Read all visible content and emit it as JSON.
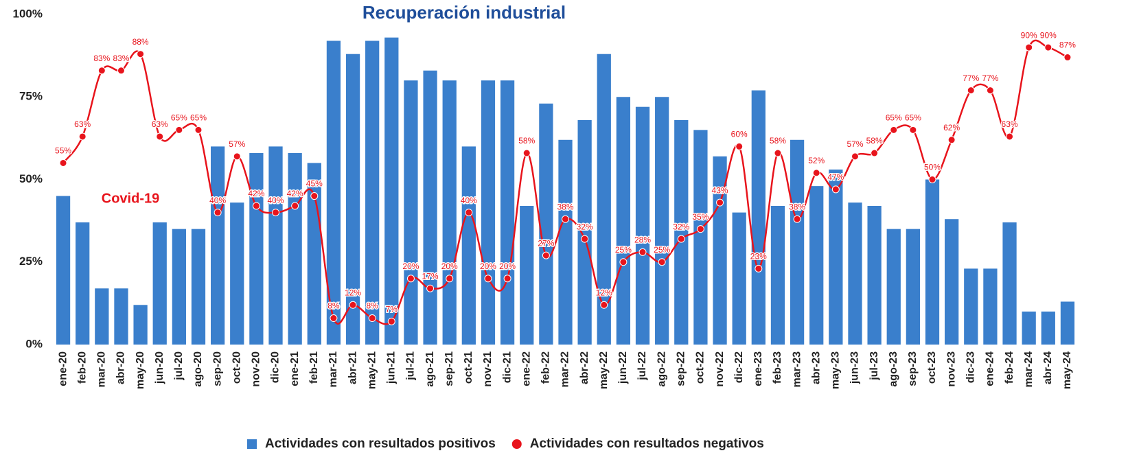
{
  "chart_data": {
    "type": "combo",
    "title": "Recuperación industrial",
    "annotations": [
      "Covid-19"
    ],
    "categories": [
      "ene-20",
      "feb-20",
      "mar-20",
      "abr-20",
      "may-20",
      "jun-20",
      "jul-20",
      "ago-20",
      "sep-20",
      "oct-20",
      "nov-20",
      "dic-20",
      "ene-21",
      "feb-21",
      "mar-21",
      "abr-21",
      "may-21",
      "jun-21",
      "jul-21",
      "ago-21",
      "sep-21",
      "oct-21",
      "nov-21",
      "dic-21",
      "ene-22",
      "feb-22",
      "mar-22",
      "abr-22",
      "may-22",
      "jun-22",
      "jul-22",
      "ago-22",
      "sep-22",
      "oct-22",
      "nov-22",
      "dic-22",
      "ene-23",
      "feb-23",
      "mar-23",
      "abr-23",
      "may-23",
      "jun-23",
      "jul-23",
      "ago-23",
      "sep-23",
      "oct-23",
      "nov-23",
      "dic-23",
      "ene-24",
      "feb-24",
      "mar-24",
      "abr-24",
      "may-24"
    ],
    "series": [
      {
        "name": "Actividades con resultados positivos",
        "type": "bar",
        "color": "#3a7fcc",
        "values": [
          45,
          37,
          17,
          17,
          12,
          37,
          35,
          35,
          60,
          43,
          58,
          60,
          58,
          55,
          92,
          88,
          92,
          93,
          80,
          83,
          80,
          60,
          80,
          80,
          42,
          73,
          62,
          68,
          88,
          75,
          72,
          75,
          68,
          65,
          57,
          40,
          77,
          42,
          62,
          48,
          53,
          43,
          42,
          35,
          35,
          50,
          38,
          23,
          23,
          37,
          10,
          10,
          13
        ]
      },
      {
        "name": "Actividades con resultados negativos",
        "type": "line",
        "color": "#e8141c",
        "values": [
          55,
          63,
          83,
          83,
          88,
          63,
          65,
          65,
          40,
          57,
          42,
          40,
          42,
          45,
          8,
          12,
          8,
          7,
          20,
          17,
          20,
          40,
          20,
          20,
          58,
          27,
          38,
          32,
          12,
          25,
          28,
          25,
          32,
          35,
          43,
          60,
          23,
          58,
          38,
          52,
          47,
          57,
          58,
          65,
          65,
          50,
          62,
          77,
          77,
          63,
          90,
          90,
          87
        ],
        "value_labels": [
          "55%",
          "63%",
          "83%",
          "83%",
          "88%",
          "63%",
          "65%",
          "65%",
          "40%",
          "57%",
          "42%",
          "40%",
          "42%",
          "45%",
          "8%",
          "12%",
          "8%",
          "7%",
          "20%",
          "17%",
          "20%",
          "40%",
          "20%",
          "20%",
          "58%",
          "27%",
          "38%",
          "32%",
          "12%",
          "25%",
          "28%",
          "25%",
          "32%",
          "35%",
          "43%",
          "60%",
          "23%",
          "58%",
          "38%",
          "52%",
          "47%",
          "57%",
          "58%",
          "65%",
          "65%",
          "50%",
          "62%",
          "77%",
          "77%",
          "63%",
          "90%",
          "90%",
          "87%"
        ]
      }
    ],
    "ylim": [
      0,
      100
    ],
    "yticks": [
      {
        "value": 0,
        "label": "0%"
      },
      {
        "value": 25,
        "label": "25%"
      },
      {
        "value": 50,
        "label": "50%"
      },
      {
        "value": 75,
        "label": "75%"
      },
      {
        "value": 100,
        "label": "100%"
      }
    ],
    "grid": false,
    "legend": "bottom"
  }
}
